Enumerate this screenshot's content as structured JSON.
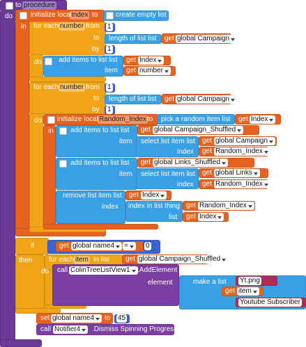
{
  "procedure": {
    "to": "to",
    "name": "procedure",
    "do": "do"
  },
  "init_index": {
    "keyword": "initialize local",
    "name": "Index",
    "to": "to",
    "value": "create empty list",
    "in": "in"
  },
  "loop1": {
    "keyword": "for each",
    "var": "number",
    "from": "from",
    "from_value": 1,
    "to": "to",
    "length": "length of list  list",
    "length_get": "get",
    "length_list": "global Campaign",
    "by": "by",
    "by_value": 1,
    "do": "do",
    "add": "add items to list  list",
    "list_get": "get",
    "list": "Index",
    "item": "item",
    "item_get": "get",
    "item_var": "number"
  },
  "loop2": {
    "keyword": "for each",
    "var": "number",
    "from": "from",
    "from_value": 1,
    "to": "to",
    "length": "length of list  list",
    "length_get": "get",
    "length_list": "global Campaign",
    "by": "by",
    "by_value": 1,
    "do": "do"
  },
  "init_random": {
    "keyword": "initialize local",
    "name": "Random_Index",
    "to": "to",
    "value": "pick a random item  list",
    "value_get": "get",
    "value_list": "Index",
    "in": "in"
  },
  "add_campaign": {
    "keyword": "add items to list  list",
    "list_get": "get",
    "list": "global Campaign_Shuffled",
    "item": "item",
    "select": "select list item  list",
    "select_get": "get",
    "select_list": "global Campaign",
    "index": "index",
    "index_get": "get",
    "index_var": "Random_Index"
  },
  "add_links": {
    "keyword": "add items to list  list",
    "list_get": "get",
    "list": "global Links_Shuffled",
    "item": "item",
    "select": "select list item  list",
    "select_get": "get",
    "select_list": "global Links",
    "index": "index",
    "index_get": "get",
    "index_var": "Random_Index"
  },
  "remove": {
    "keyword": "remove list item  list",
    "list_get": "get",
    "list": "Index",
    "index": "index",
    "index_in": "index in list  thing",
    "thing_get": "get",
    "thing": "Random_Index",
    "list_label": "list",
    "list2_get": "get",
    "list2": "Index"
  },
  "if_block": {
    "if": "if",
    "get": "get",
    "var": "global name4",
    "op": "=",
    "value": 0,
    "then": "then"
  },
  "loop3": {
    "keyword": "for each",
    "var": "item",
    "in": "in list",
    "list_get": "get",
    "list": "global Campaign_Shuffled",
    "do": "do"
  },
  "call_add": {
    "call": "call",
    "component": "ColinTreeListView1",
    "method": ".AddElement",
    "element": "element",
    "make": "make a list",
    "text1": "Yt.png",
    "item_get": "get",
    "item": "item",
    "text2": "Youtube Subscriber"
  },
  "set": {
    "set": "set",
    "var": "global name4",
    "to": "to",
    "value": 45
  },
  "call_dismiss": {
    "call": "call",
    "component": "Notifier4",
    "method": ".Dismiss Spinning Progress"
  }
}
